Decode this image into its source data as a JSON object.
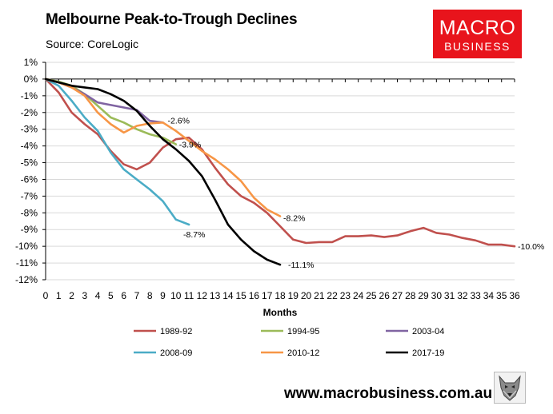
{
  "title": "Melbourne Peak-to-Trough Declines",
  "subtitle": "Source: CoreLogic",
  "logo": {
    "line1": "MACRO",
    "line2": "BUSINESS",
    "color": "#e8141c"
  },
  "footer": {
    "url": "www.macrobusiness.com.au",
    "icon": "wolf-logo-icon"
  },
  "chart_data": {
    "type": "line",
    "title": "Melbourne Peak-to-Trough Declines",
    "xlabel": "Months",
    "ylabel": "",
    "xlim": [
      0,
      36
    ],
    "ylim": [
      -12,
      1
    ],
    "x_ticks": [
      0,
      1,
      2,
      3,
      4,
      5,
      6,
      7,
      8,
      9,
      10,
      11,
      12,
      13,
      14,
      15,
      16,
      17,
      18,
      19,
      20,
      21,
      22,
      23,
      24,
      25,
      26,
      27,
      28,
      29,
      30,
      31,
      32,
      33,
      34,
      35,
      36
    ],
    "y_ticks": [
      1,
      0,
      -1,
      -2,
      -3,
      -4,
      -5,
      -6,
      -7,
      -8,
      -9,
      -10,
      -11,
      -12
    ],
    "y_tick_labels": [
      "1%",
      "0%",
      "-1%",
      "-2%",
      "-3%",
      "-4%",
      "-5%",
      "-6%",
      "-7%",
      "-8%",
      "-9%",
      "-10%",
      "-11%",
      "-12%"
    ],
    "grid": true,
    "legend_position": "bottom",
    "series": [
      {
        "name": "1989-92",
        "color": "#c0504d",
        "x": [
          0,
          1,
          2,
          3,
          4,
          5,
          6,
          7,
          8,
          9,
          10,
          11,
          12,
          13,
          14,
          15,
          16,
          17,
          18,
          19,
          20,
          21,
          22,
          23,
          24,
          25,
          26,
          27,
          28,
          29,
          30,
          31,
          32,
          33,
          34,
          35,
          36
        ],
        "y": [
          0,
          -0.8,
          -2.0,
          -2.7,
          -3.3,
          -4.3,
          -5.1,
          -5.4,
          -5.0,
          -4.1,
          -3.6,
          -3.5,
          -4.2,
          -5.3,
          -6.3,
          -7.0,
          -7.4,
          -8.0,
          -8.8,
          -9.6,
          -9.8,
          -9.75,
          -9.75,
          -9.4,
          -9.4,
          -9.35,
          -9.45,
          -9.35,
          -9.1,
          -8.9,
          -9.2,
          -9.3,
          -9.5,
          -9.65,
          -9.9,
          -9.9,
          -10.0
        ],
        "end_label": "-10.0%"
      },
      {
        "name": "1994-95",
        "color": "#9bbb59",
        "x": [
          0,
          1,
          2,
          3,
          4,
          5,
          6,
          7,
          8,
          9,
          10
        ],
        "y": [
          0,
          -0.15,
          -0.4,
          -0.9,
          -1.6,
          -2.3,
          -2.6,
          -3.0,
          -3.3,
          -3.5,
          -3.9
        ],
        "end_label": "-3.9%"
      },
      {
        "name": "2003-04",
        "color": "#8064a2",
        "x": [
          0,
          1,
          2,
          3,
          4,
          5,
          6,
          7,
          8,
          9
        ],
        "y": [
          0,
          -0.2,
          -0.5,
          -0.9,
          -1.4,
          -1.55,
          -1.7,
          -1.85,
          -2.5,
          -2.6
        ],
        "end_label": "-2.6%"
      },
      {
        "name": "2008-09",
        "color": "#4bacc6",
        "x": [
          0,
          1,
          2,
          3,
          4,
          5,
          6,
          7,
          8,
          9,
          10,
          11
        ],
        "y": [
          0,
          -0.4,
          -1.3,
          -2.3,
          -3.1,
          -4.4,
          -5.4,
          -6.0,
          -6.6,
          -7.3,
          -8.4,
          -8.7
        ],
        "end_label": "-8.7%"
      },
      {
        "name": "2010-12",
        "color": "#f79646",
        "x": [
          0,
          1,
          2,
          3,
          4,
          5,
          6,
          7,
          8,
          9,
          10,
          11,
          12,
          13,
          14,
          15,
          16,
          17,
          18
        ],
        "y": [
          0,
          -0.2,
          -0.5,
          -1.0,
          -2.0,
          -2.7,
          -3.2,
          -2.8,
          -2.65,
          -2.6,
          -3.1,
          -3.7,
          -4.3,
          -4.8,
          -5.4,
          -6.1,
          -7.1,
          -7.8,
          -8.2
        ],
        "end_label": "-8.2%"
      },
      {
        "name": "2017-19",
        "color": "#000000",
        "x": [
          0,
          1,
          2,
          3,
          4,
          5,
          6,
          7,
          8,
          9,
          10,
          11,
          12,
          13,
          14,
          15,
          16,
          17,
          18
        ],
        "y": [
          0,
          -0.2,
          -0.4,
          -0.5,
          -0.6,
          -0.9,
          -1.3,
          -1.9,
          -2.8,
          -3.6,
          -4.2,
          -4.9,
          -5.8,
          -7.2,
          -8.7,
          -9.6,
          -10.3,
          -10.8,
          -11.1
        ],
        "end_label": "-11.1%"
      }
    ]
  }
}
